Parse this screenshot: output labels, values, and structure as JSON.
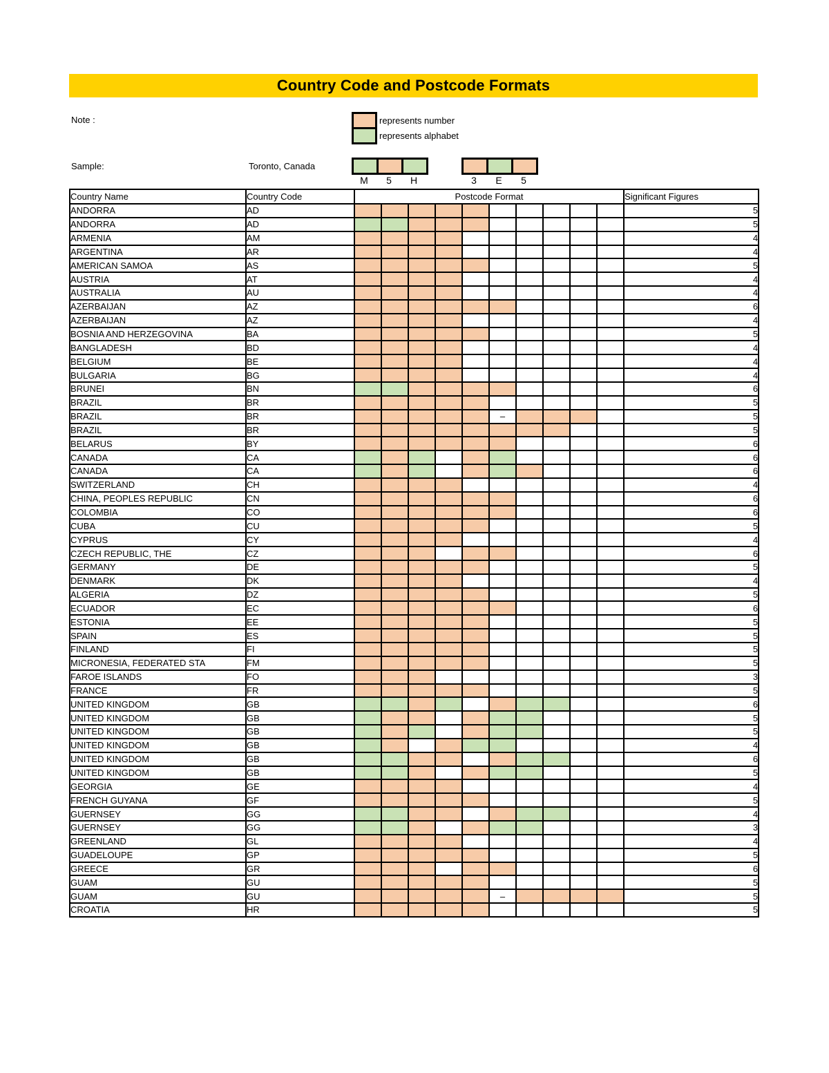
{
  "title": "Country Code and Postcode Formats",
  "colors": {
    "banner_fill": "#FFD100",
    "number_fill": "#F7CBA8",
    "alphabet_fill": "#C9E2B5"
  },
  "note": {
    "label": "Note :",
    "items": [
      {
        "type": "number",
        "label": "represents number"
      },
      {
        "type": "alphabet",
        "label": "represents alphabet"
      }
    ]
  },
  "sample": {
    "label": "Sample:",
    "location": "Toronto, Canada",
    "groups": [
      {
        "pattern": "ANA",
        "chars": [
          "M",
          "5",
          "H"
        ]
      },
      {
        "pattern": "NAN",
        "chars": [
          "3",
          "E",
          "5"
        ]
      }
    ]
  },
  "table": {
    "headers": {
      "name": "Country Name",
      "code": "Country Code",
      "format": "Postcode Format",
      "sig": "Significant Figures"
    },
    "dash_char": "–",
    "format_slots": 10,
    "rows": [
      {
        "name": "ANDORRA",
        "code": "AD",
        "fmt": "NNNNN.....",
        "sig": 5
      },
      {
        "name": "ANDORRA",
        "code": "AD",
        "fmt": "AANNN.....",
        "sig": 5
      },
      {
        "name": "ARMENIA",
        "code": "AM",
        "fmt": "NNNN......",
        "sig": 4
      },
      {
        "name": "ARGENTINA",
        "code": "AR",
        "fmt": "NNNN......",
        "sig": 4
      },
      {
        "name": "AMERICAN SAMOA",
        "code": "AS",
        "fmt": "NNNNN.....",
        "sig": 5
      },
      {
        "name": "AUSTRIA",
        "code": "AT",
        "fmt": "NNNN......",
        "sig": 4
      },
      {
        "name": "AUSTRALIA",
        "code": "AU",
        "fmt": "NNNN......",
        "sig": 4
      },
      {
        "name": "AZERBAIJAN",
        "code": "AZ",
        "fmt": "NNNNNN....",
        "sig": 6
      },
      {
        "name": "AZERBAIJAN",
        "code": "AZ",
        "fmt": "NNNN......",
        "sig": 4
      },
      {
        "name": "BOSNIA AND HERZEGOVINA",
        "code": "BA",
        "fmt": "NNNNN.....",
        "sig": 5
      },
      {
        "name": "BANGLADESH",
        "code": "BD",
        "fmt": "NNNN......",
        "sig": 4
      },
      {
        "name": "BELGIUM",
        "code": "BE",
        "fmt": "NNNN......",
        "sig": 4
      },
      {
        "name": "BULGARIA",
        "code": "BG",
        "fmt": "NNNN......",
        "sig": 4
      },
      {
        "name": "BRUNEI",
        "code": "BN",
        "fmt": "AANNNN....",
        "sig": 6
      },
      {
        "name": "BRAZIL",
        "code": "BR",
        "fmt": "NNNNN.....",
        "sig": 5
      },
      {
        "name": "BRAZIL",
        "code": "BR",
        "fmt": "NNNNN-NNN.",
        "sig": 5
      },
      {
        "name": "BRAZIL",
        "code": "BR",
        "fmt": "NNNNNNNN..",
        "sig": 5
      },
      {
        "name": "BELARUS",
        "code": "BY",
        "fmt": "NNNNNN....",
        "sig": 6
      },
      {
        "name": "CANADA",
        "code": "CA",
        "fmt": "ANA.NA....",
        "sig": 6
      },
      {
        "name": "CANADA",
        "code": "CA",
        "fmt": "ANA.NAN...",
        "sig": 6
      },
      {
        "name": "SWITZERLAND",
        "code": "CH",
        "fmt": "NNNN......",
        "sig": 4
      },
      {
        "name": "CHINA, PEOPLES REPUBLIC",
        "code": "CN",
        "fmt": "NNNNNN....",
        "sig": 6
      },
      {
        "name": "COLOMBIA",
        "code": "CO",
        "fmt": "NNNNNN....",
        "sig": 6
      },
      {
        "name": "CUBA",
        "code": "CU",
        "fmt": "NNNNN.....",
        "sig": 5
      },
      {
        "name": "CYPRUS",
        "code": "CY",
        "fmt": "NNNN......",
        "sig": 4
      },
      {
        "name": "CZECH REPUBLIC, THE",
        "code": "CZ",
        "fmt": "NNN.NN....",
        "sig": 6
      },
      {
        "name": "GERMANY",
        "code": "DE",
        "fmt": "NNNNN.....",
        "sig": 5
      },
      {
        "name": "DENMARK",
        "code": "DK",
        "fmt": "NNNN......",
        "sig": 4
      },
      {
        "name": "ALGERIA",
        "code": "DZ",
        "fmt": "NNNNN.....",
        "sig": 5
      },
      {
        "name": "ECUADOR",
        "code": "EC",
        "fmt": "NNNNNN....",
        "sig": 6
      },
      {
        "name": "ESTONIA",
        "code": "EE",
        "fmt": "NNNNN.....",
        "sig": 5
      },
      {
        "name": "SPAIN",
        "code": "ES",
        "fmt": "NNNNN.....",
        "sig": 5
      },
      {
        "name": "FINLAND",
        "code": "FI",
        "fmt": "NNNNN.....",
        "sig": 5
      },
      {
        "name": "MICRONESIA, FEDERATED STA",
        "code": "FM",
        "fmt": "NNNNN.....",
        "sig": 5
      },
      {
        "name": "FAROE ISLANDS",
        "code": "FO",
        "fmt": "NNN.......",
        "sig": 3
      },
      {
        "name": "FRANCE",
        "code": "FR",
        "fmt": "NNNNN.....",
        "sig": 5
      },
      {
        "name": "UNITED KINGDOM",
        "code": "GB",
        "fmt": "AANA.NAA..",
        "sig": 6
      },
      {
        "name": "UNITED KINGDOM",
        "code": "GB",
        "fmt": "ANN.NAA...",
        "sig": 5
      },
      {
        "name": "UNITED KINGDOM",
        "code": "GB",
        "fmt": "ANA.NAA...",
        "sig": 5
      },
      {
        "name": "UNITED KINGDOM",
        "code": "GB",
        "fmt": "AN.NAA....",
        "sig": 4
      },
      {
        "name": "UNITED KINGDOM",
        "code": "GB",
        "fmt": "AANN.NAA..",
        "sig": 6
      },
      {
        "name": "UNITED KINGDOM",
        "code": "GB",
        "fmt": "AAN.NAA...",
        "sig": 5
      },
      {
        "name": "GEORGIA",
        "code": "GE",
        "fmt": "NNNN......",
        "sig": 4
      },
      {
        "name": "FRENCH GUYANA",
        "code": "GF",
        "fmt": "NNNNN.....",
        "sig": 5
      },
      {
        "name": "GUERNSEY",
        "code": "GG",
        "fmt": "AANN.NAA..",
        "sig": 4
      },
      {
        "name": "GUERNSEY",
        "code": "GG",
        "fmt": "AAN.NAA...",
        "sig": 3
      },
      {
        "name": "GREENLAND",
        "code": "GL",
        "fmt": "NNNN......",
        "sig": 4
      },
      {
        "name": "GUADELOUPE",
        "code": "GP",
        "fmt": "NNNNN.....",
        "sig": 5
      },
      {
        "name": "GREECE",
        "code": "GR",
        "fmt": "NNN.NN....",
        "sig": 6
      },
      {
        "name": "GUAM",
        "code": "GU",
        "fmt": "NNNNN.....",
        "sig": 5
      },
      {
        "name": "GUAM",
        "code": "GU",
        "fmt": "NNNNN-NNNN",
        "sig": 5
      },
      {
        "name": "CROATIA",
        "code": "HR",
        "fmt": "NNNNN.....",
        "sig": 5
      }
    ]
  }
}
